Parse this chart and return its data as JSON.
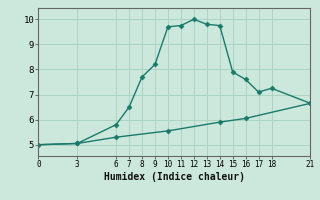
{
  "xlabel": "Humidex (Indice chaleur)",
  "bg_color": "#cce8dc",
  "line_color": "#1a7a6a",
  "upper_x": [
    0,
    3,
    6,
    7,
    8,
    9,
    10,
    11,
    12,
    13,
    14,
    15,
    16,
    17,
    18,
    21
  ],
  "upper_y": [
    5.0,
    5.05,
    5.8,
    6.5,
    7.7,
    8.2,
    9.7,
    9.75,
    10.0,
    9.8,
    9.75,
    7.9,
    7.6,
    7.1,
    7.25,
    6.65
  ],
  "lower_x": [
    0,
    3,
    6,
    10,
    14,
    16,
    21
  ],
  "lower_y": [
    5.0,
    5.05,
    5.3,
    5.55,
    5.9,
    6.05,
    6.65
  ],
  "xticks": [
    0,
    3,
    6,
    7,
    8,
    9,
    10,
    11,
    12,
    13,
    14,
    15,
    16,
    17,
    18,
    21
  ],
  "yticks": [
    5,
    6,
    7,
    8,
    9,
    10
  ],
  "xlim": [
    0,
    21
  ],
  "ylim": [
    4.55,
    10.45
  ],
  "grid_color": "#aad4c4",
  "marker": "D",
  "markersize": 2.5,
  "linewidth": 1.0,
  "xlabel_fontsize": 7,
  "tick_fontsize": 6.5,
  "tick_fontsize_x": 5.5
}
